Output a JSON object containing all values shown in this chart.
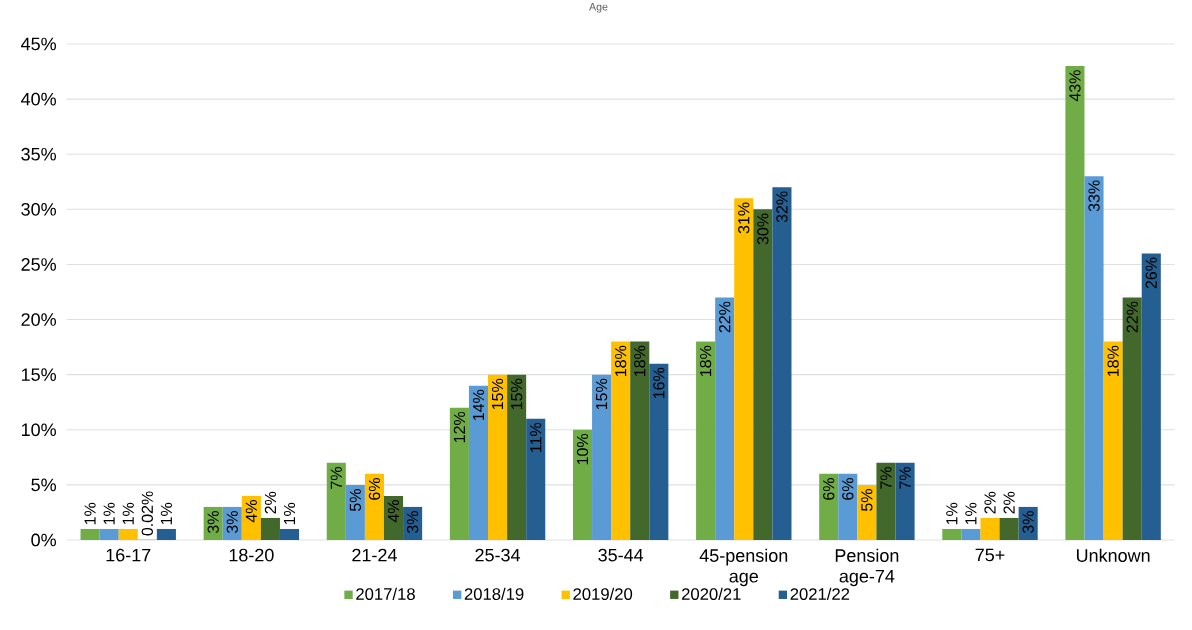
{
  "chart_data": {
    "type": "bar",
    "title": "Age",
    "categories": [
      "16-17",
      "18-20",
      "21-24",
      "25-34",
      "35-44",
      "45-pension age",
      "Pension age-74",
      "75+",
      "Unknown"
    ],
    "series": [
      {
        "name": "2017/18",
        "color": "#70ad47",
        "values": [
          1,
          3,
          7,
          12,
          10,
          18,
          6,
          1,
          43
        ],
        "value_labels": [
          "1%",
          "3%",
          "7%",
          "12%",
          "10%",
          "18%",
          "6%",
          "1%",
          "43%"
        ]
      },
      {
        "name": "2018/19",
        "color": "#5b9bd5",
        "values": [
          1,
          3,
          5,
          14,
          15,
          22,
          6,
          1,
          33
        ],
        "value_labels": [
          "1%",
          "3%",
          "5%",
          "14%",
          "15%",
          "22%",
          "6%",
          "1%",
          "33%"
        ]
      },
      {
        "name": "2019/20",
        "color": "#ffc000",
        "values": [
          1,
          4,
          6,
          15,
          18,
          31,
          5,
          2,
          18
        ],
        "value_labels": [
          "1%",
          "4%",
          "6%",
          "15%",
          "18%",
          "31%",
          "5%",
          "2%",
          "18%"
        ]
      },
      {
        "name": "2020/21",
        "color": "#43682b",
        "values": [
          0.02,
          2,
          4,
          15,
          18,
          30,
          7,
          2,
          22
        ],
        "value_labels": [
          "0.02%",
          "2%",
          "4%",
          "15%",
          "18%",
          "30%",
          "7%",
          "2%",
          "22%"
        ]
      },
      {
        "name": "2021/22",
        "color": "#255e91",
        "values": [
          1,
          1,
          3,
          11,
          16,
          32,
          7,
          3,
          26
        ],
        "value_labels": [
          "1%",
          "1%",
          "3%",
          "11%",
          "16%",
          "32%",
          "7%",
          "3%",
          "26%"
        ]
      }
    ],
    "ylim": [
      0,
      45
    ],
    "yticks": [
      {
        "value": 0,
        "label": "0%"
      },
      {
        "value": 5,
        "label": "5%"
      },
      {
        "value": 10,
        "label": "10%"
      },
      {
        "value": 15,
        "label": "15%"
      },
      {
        "value": 20,
        "label": "20%"
      },
      {
        "value": 25,
        "label": "25%"
      },
      {
        "value": 30,
        "label": "30%"
      },
      {
        "value": 35,
        "label": "35%"
      },
      {
        "value": 40,
        "label": "40%"
      },
      {
        "value": 45,
        "label": "45%"
      }
    ],
    "grid": "y",
    "legend": "bottom"
  }
}
